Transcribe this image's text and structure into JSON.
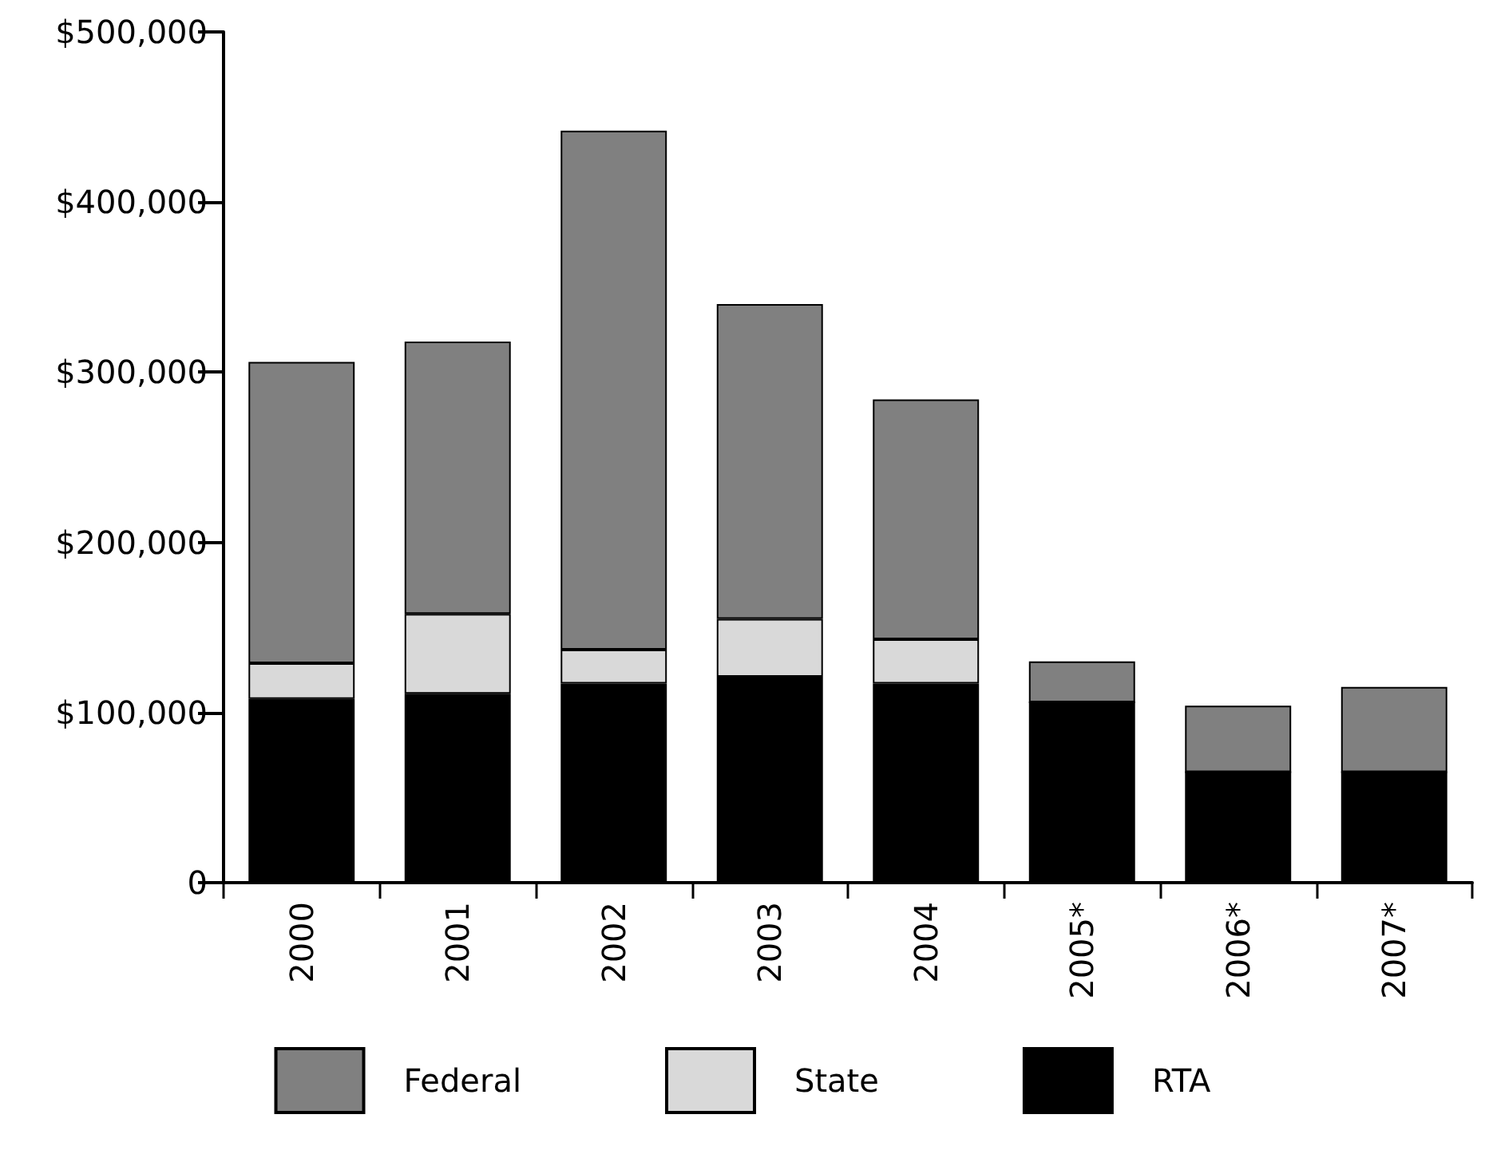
{
  "chart_data": {
    "type": "bar",
    "stacked": true,
    "categories": [
      "2000",
      "2001",
      "2002",
      "2003",
      "2004",
      "2005*",
      "2006*",
      "2007*"
    ],
    "series": [
      {
        "name": "RTA",
        "color": "#000000",
        "values": [
          108000,
          111000,
          117000,
          121000,
          117000,
          106000,
          65000,
          65000
        ]
      },
      {
        "name": "State",
        "color": "#d9d9d9",
        "values": [
          21000,
          47000,
          20000,
          34000,
          26000,
          0,
          0,
          0
        ]
      },
      {
        "name": "Federal",
        "color": "#808080",
        "values": [
          177000,
          160000,
          305000,
          185000,
          141000,
          24000,
          39000,
          50000
        ]
      }
    ],
    "ylim": [
      0,
      500000
    ],
    "yticks": [
      {
        "value": 0,
        "label": "0"
      },
      {
        "value": 100000,
        "label": "$100,000"
      },
      {
        "value": 200000,
        "label": "$200,000"
      },
      {
        "value": 300000,
        "label": "$300,000"
      },
      {
        "value": 400000,
        "label": "$400,000"
      },
      {
        "value": 500000,
        "label": "$500,000"
      }
    ],
    "grid": false,
    "legend": "bottom"
  }
}
